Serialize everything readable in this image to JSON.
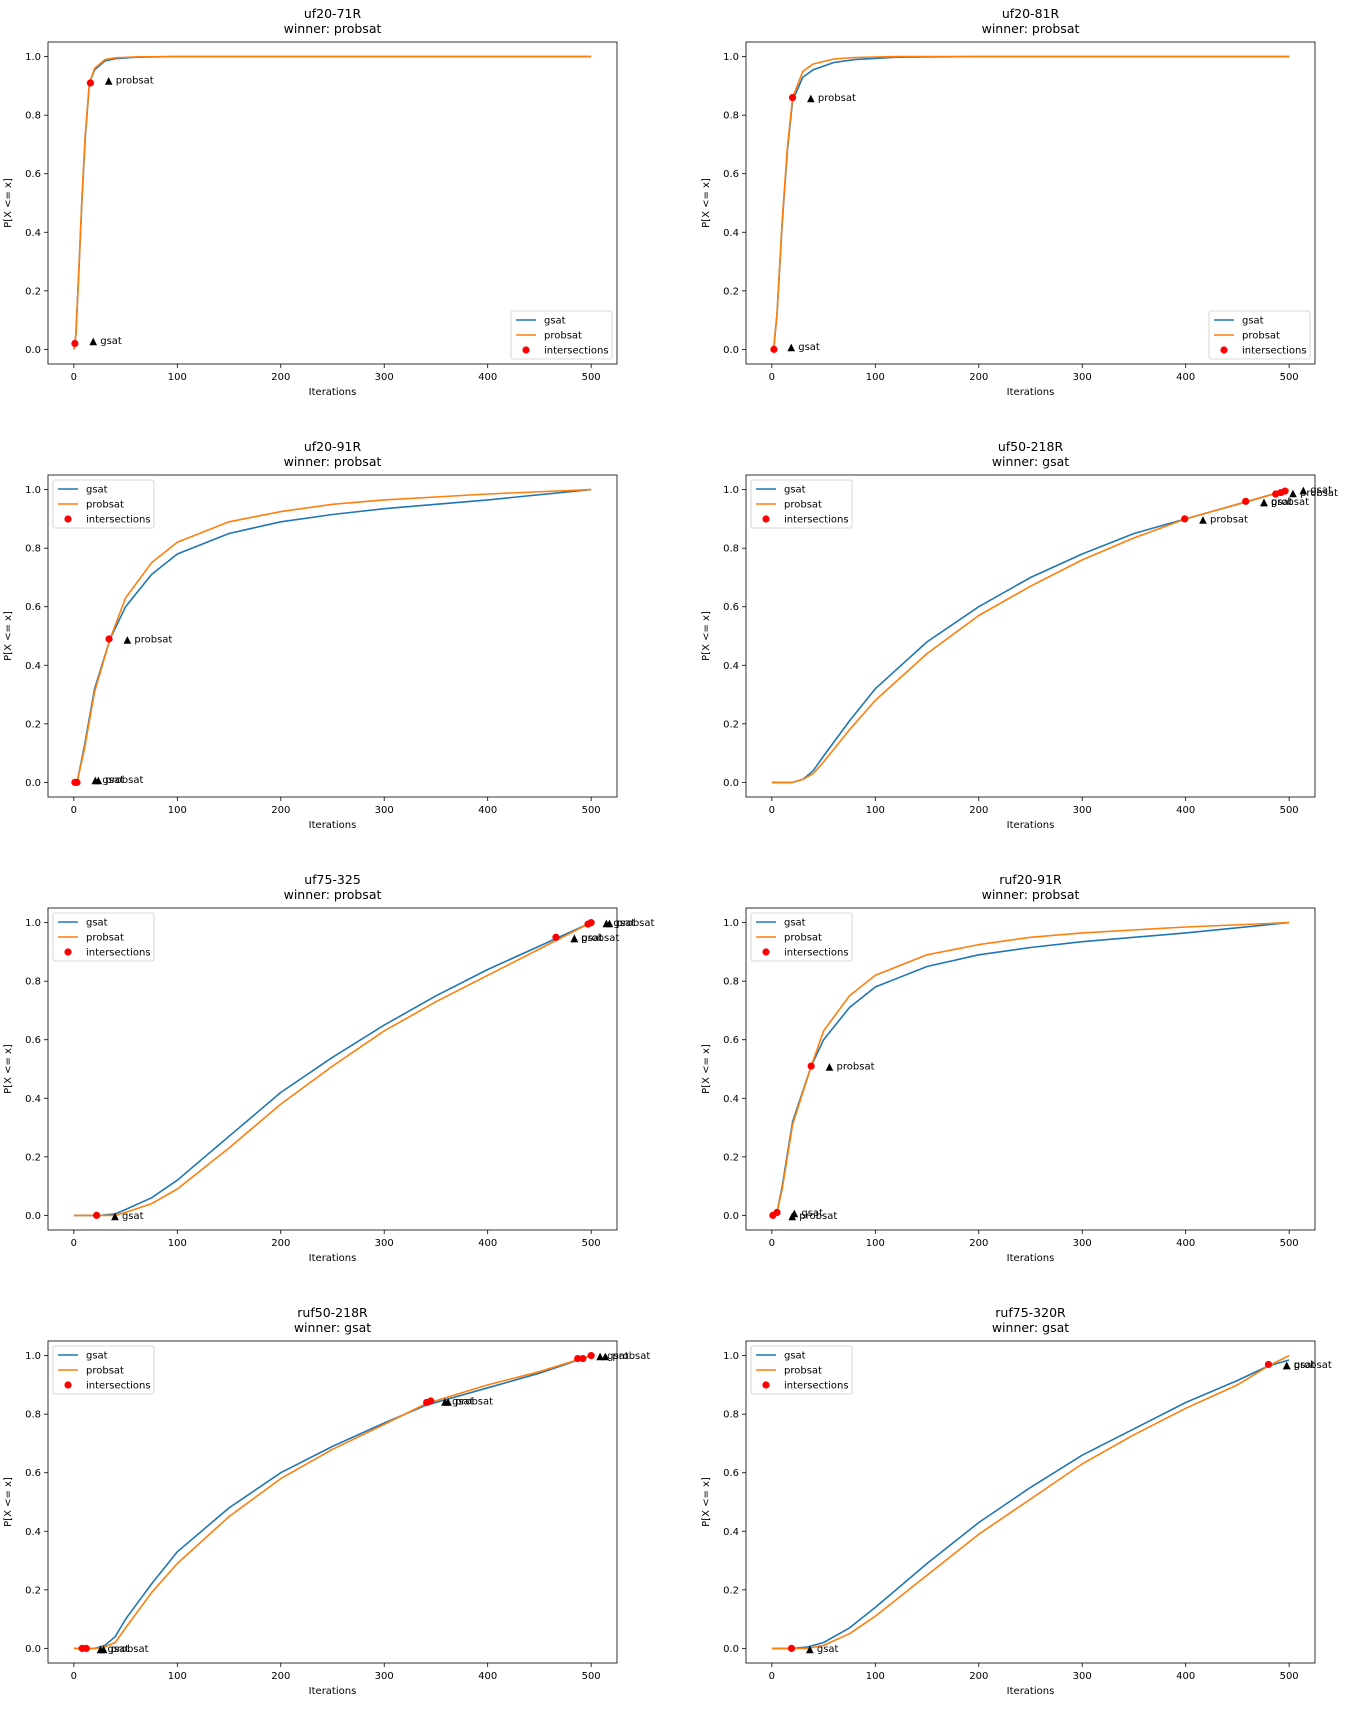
{
  "colors": {
    "gsat": "#1f77b4",
    "probsat": "#ff7f0e",
    "intersections": "#ff0000",
    "annotation": "#000000"
  },
  "chart_data": [
    {
      "type": "line",
      "title": "uf20-71R",
      "subtitle": "winner: probsat",
      "xlabel": "Iterations",
      "ylabel": "P[X <= x]",
      "xlim": [
        -25,
        525
      ],
      "ylim": [
        -0.05,
        1.05
      ],
      "xticks": [
        0,
        100,
        200,
        300,
        400,
        500
      ],
      "yticks": [
        0.0,
        0.2,
        0.4,
        0.6,
        0.8,
        1.0
      ],
      "legend_position": "lower-right",
      "legend": [
        "gsat",
        "probsat",
        "intersections"
      ],
      "series": [
        {
          "name": "gsat",
          "x": [
            0,
            2,
            5,
            8,
            11,
            15,
            20,
            30,
            40,
            60,
            100,
            200,
            500
          ],
          "y": [
            0,
            0.05,
            0.28,
            0.52,
            0.72,
            0.91,
            0.955,
            0.985,
            0.993,
            0.998,
            1.0,
            1.0,
            1.0
          ]
        },
        {
          "name": "probsat",
          "x": [
            0,
            2,
            5,
            8,
            11,
            15,
            20,
            30,
            40,
            60,
            100,
            200,
            500
          ],
          "y": [
            0,
            0.05,
            0.28,
            0.53,
            0.73,
            0.91,
            0.96,
            0.99,
            0.996,
            0.999,
            1.0,
            1.0,
            1.0
          ]
        }
      ],
      "intersections": [
        {
          "x": 1,
          "y": 0.02
        },
        {
          "x": 16,
          "y": 0.91
        }
      ],
      "annotations": [
        {
          "x": 15,
          "y": 0.03,
          "text": "▲ gsat"
        },
        {
          "x": 30,
          "y": 0.92,
          "text": "▲ probsat"
        }
      ]
    },
    {
      "type": "line",
      "title": "uf20-81R",
      "subtitle": "winner: probsat",
      "xlabel": "Iterations",
      "ylabel": "P[X <= x]",
      "xlim": [
        -25,
        525
      ],
      "ylim": [
        -0.05,
        1.05
      ],
      "xticks": [
        0,
        100,
        200,
        300,
        400,
        500
      ],
      "yticks": [
        0.0,
        0.2,
        0.4,
        0.6,
        0.8,
        1.0
      ],
      "legend_position": "lower-right",
      "legend": [
        "gsat",
        "probsat",
        "intersections"
      ],
      "series": [
        {
          "name": "gsat",
          "x": [
            0,
            2,
            5,
            10,
            15,
            20,
            30,
            40,
            60,
            80,
            120,
            200,
            500
          ],
          "y": [
            0,
            0.01,
            0.12,
            0.43,
            0.68,
            0.85,
            0.93,
            0.955,
            0.98,
            0.99,
            0.998,
            1.0,
            1.0
          ]
        },
        {
          "name": "probsat",
          "x": [
            0,
            2,
            5,
            10,
            15,
            20,
            30,
            40,
            60,
            80,
            120,
            200,
            500
          ],
          "y": [
            0,
            0.01,
            0.12,
            0.44,
            0.69,
            0.86,
            0.95,
            0.975,
            0.992,
            0.997,
            1.0,
            1.0,
            1.0
          ]
        }
      ],
      "intersections": [
        {
          "x": 2,
          "y": 0.0
        },
        {
          "x": 20,
          "y": 0.86
        }
      ],
      "annotations": [
        {
          "x": 15,
          "y": 0.01,
          "text": "▲ gsat"
        },
        {
          "x": 34,
          "y": 0.86,
          "text": "▲ probsat"
        }
      ]
    },
    {
      "type": "line",
      "title": "uf20-91R",
      "subtitle": "winner: probsat",
      "xlabel": "Iterations",
      "ylabel": "P[X <= x]",
      "xlim": [
        -25,
        525
      ],
      "ylim": [
        -0.05,
        1.05
      ],
      "xticks": [
        0,
        100,
        200,
        300,
        400,
        500
      ],
      "yticks": [
        0.0,
        0.2,
        0.4,
        0.6,
        0.8,
        1.0
      ],
      "legend_position": "upper-left",
      "legend": [
        "gsat",
        "probsat",
        "intersections"
      ],
      "series": [
        {
          "name": "gsat",
          "x": [
            0,
            3,
            10,
            20,
            35,
            50,
            75,
            100,
            150,
            200,
            250,
            300,
            400,
            500
          ],
          "y": [
            0,
            0.0,
            0.12,
            0.32,
            0.49,
            0.6,
            0.71,
            0.78,
            0.85,
            0.89,
            0.915,
            0.935,
            0.965,
            1.0
          ]
        },
        {
          "name": "probsat",
          "x": [
            0,
            3,
            10,
            20,
            35,
            50,
            75,
            100,
            150,
            200,
            250,
            300,
            400,
            500
          ],
          "y": [
            0,
            0.0,
            0.11,
            0.31,
            0.49,
            0.63,
            0.75,
            0.82,
            0.89,
            0.925,
            0.95,
            0.965,
            0.985,
            1.0
          ]
        }
      ],
      "intersections": [
        {
          "x": 1,
          "y": 0.0
        },
        {
          "x": 3,
          "y": 0.0
        },
        {
          "x": 34,
          "y": 0.49
        }
      ],
      "annotations": [
        {
          "x": 17,
          "y": 0.01,
          "text": "▲ gsat"
        },
        {
          "x": 20,
          "y": 0.01,
          "text": "▲ probsat"
        },
        {
          "x": 48,
          "y": 0.49,
          "text": "▲ probsat"
        }
      ]
    },
    {
      "type": "line",
      "title": "uf50-218R",
      "subtitle": "winner: gsat",
      "xlabel": "Iterations",
      "ylabel": "P[X <= x]",
      "xlim": [
        -25,
        525
      ],
      "ylim": [
        -0.05,
        1.05
      ],
      "xticks": [
        0,
        100,
        200,
        300,
        400,
        500
      ],
      "yticks": [
        0.0,
        0.2,
        0.4,
        0.6,
        0.8,
        1.0
      ],
      "legend_position": "upper-left",
      "legend": [
        "gsat",
        "probsat",
        "intersections"
      ],
      "series": [
        {
          "name": "gsat",
          "x": [
            0,
            20,
            30,
            40,
            50,
            75,
            100,
            150,
            200,
            250,
            300,
            350,
            400,
            450,
            500
          ],
          "y": [
            0,
            0.0,
            0.01,
            0.04,
            0.09,
            0.21,
            0.32,
            0.48,
            0.6,
            0.7,
            0.78,
            0.85,
            0.9,
            0.95,
            1.0
          ]
        },
        {
          "name": "probsat",
          "x": [
            0,
            20,
            30,
            40,
            50,
            75,
            100,
            150,
            200,
            250,
            300,
            350,
            400,
            450,
            500
          ],
          "y": [
            0,
            0.0,
            0.01,
            0.03,
            0.07,
            0.18,
            0.28,
            0.44,
            0.57,
            0.67,
            0.76,
            0.835,
            0.9,
            0.95,
            1.0
          ]
        }
      ],
      "intersections": [
        {
          "x": 399,
          "y": 0.9
        },
        {
          "x": 458,
          "y": 0.96
        },
        {
          "x": 487,
          "y": 0.985
        },
        {
          "x": 492,
          "y": 0.99
        },
        {
          "x": 496,
          "y": 0.995
        }
      ],
      "annotations": [
        {
          "x": 413,
          "y": 0.9,
          "text": "▲ probsat"
        },
        {
          "x": 472,
          "y": 0.96,
          "text": "▲ gsat"
        },
        {
          "x": 472,
          "y": 0.96,
          "text": "▲ probsat"
        },
        {
          "x": 500,
          "y": 0.99,
          "text": "▲ probsat"
        },
        {
          "x": 510,
          "y": 1.0,
          "text": "▲ gsat"
        }
      ]
    },
    {
      "type": "line",
      "title": "uf75-325",
      "subtitle": "winner: probsat",
      "xlabel": "Iterations",
      "ylabel": "P[X <= x]",
      "xlim": [
        -25,
        525
      ],
      "ylim": [
        -0.05,
        1.05
      ],
      "xticks": [
        0,
        100,
        200,
        300,
        400,
        500
      ],
      "yticks": [
        0.0,
        0.2,
        0.4,
        0.6,
        0.8,
        1.0
      ],
      "legend_position": "upper-left",
      "legend": [
        "gsat",
        "probsat",
        "intersections"
      ],
      "series": [
        {
          "name": "gsat",
          "x": [
            0,
            25,
            40,
            50,
            75,
            100,
            150,
            200,
            250,
            300,
            350,
            400,
            450,
            500
          ],
          "y": [
            0,
            0.0,
            0.005,
            0.02,
            0.06,
            0.12,
            0.27,
            0.42,
            0.54,
            0.65,
            0.75,
            0.84,
            0.92,
            1.0
          ]
        },
        {
          "name": "probsat",
          "x": [
            0,
            25,
            40,
            50,
            75,
            100,
            150,
            200,
            250,
            300,
            350,
            400,
            450,
            500
          ],
          "y": [
            0,
            0.0,
            0.0,
            0.01,
            0.04,
            0.09,
            0.23,
            0.38,
            0.51,
            0.63,
            0.73,
            0.82,
            0.91,
            1.0
          ]
        }
      ],
      "intersections": [
        {
          "x": 22,
          "y": 0.0
        },
        {
          "x": 466,
          "y": 0.95
        },
        {
          "x": 497,
          "y": 0.995
        },
        {
          "x": 500,
          "y": 1.0
        }
      ],
      "annotations": [
        {
          "x": 36,
          "y": 0.0,
          "text": "▲ gsat"
        },
        {
          "x": 480,
          "y": 0.95,
          "text": "▲ gsat"
        },
        {
          "x": 480,
          "y": 0.95,
          "text": "▲ probsat"
        },
        {
          "x": 511,
          "y": 1.0,
          "text": "▲ gsat"
        },
        {
          "x": 514,
          "y": 1.0,
          "text": "▲ probsat"
        }
      ]
    },
    {
      "type": "line",
      "title": "ruf20-91R",
      "subtitle": "winner: probsat",
      "xlabel": "Iterations",
      "ylabel": "P[X <= x]",
      "xlim": [
        -25,
        525
      ],
      "ylim": [
        -0.05,
        1.05
      ],
      "xticks": [
        0,
        100,
        200,
        300,
        400,
        500
      ],
      "yticks": [
        0.0,
        0.2,
        0.4,
        0.6,
        0.8,
        1.0
      ],
      "legend_position": "upper-left",
      "legend": [
        "gsat",
        "probsat",
        "intersections"
      ],
      "series": [
        {
          "name": "gsat",
          "x": [
            0,
            5,
            10,
            20,
            38,
            50,
            75,
            100,
            150,
            200,
            250,
            300,
            400,
            500
          ],
          "y": [
            0,
            0.01,
            0.1,
            0.32,
            0.51,
            0.6,
            0.71,
            0.78,
            0.85,
            0.89,
            0.915,
            0.935,
            0.965,
            1.0
          ]
        },
        {
          "name": "probsat",
          "x": [
            0,
            5,
            10,
            20,
            38,
            50,
            75,
            100,
            150,
            200,
            250,
            300,
            400,
            500
          ],
          "y": [
            0,
            0.01,
            0.09,
            0.31,
            0.51,
            0.63,
            0.75,
            0.82,
            0.89,
            0.925,
            0.95,
            0.965,
            0.985,
            1.0
          ]
        }
      ],
      "intersections": [
        {
          "x": 1,
          "y": 0.0
        },
        {
          "x": 5,
          "y": 0.01
        },
        {
          "x": 38,
          "y": 0.51
        }
      ],
      "annotations": [
        {
          "x": 16,
          "y": 0.0,
          "text": "▲ probsat"
        },
        {
          "x": 18,
          "y": 0.01,
          "text": "▲ gsat"
        },
        {
          "x": 52,
          "y": 0.51,
          "text": "▲ probsat"
        }
      ]
    },
    {
      "type": "line",
      "title": "ruf50-218R",
      "subtitle": "winner: gsat",
      "xlabel": "Iterations",
      "ylabel": "P[X <= x]",
      "xlim": [
        -25,
        525
      ],
      "ylim": [
        -0.05,
        1.05
      ],
      "xticks": [
        0,
        100,
        200,
        300,
        400,
        500
      ],
      "yticks": [
        0.0,
        0.2,
        0.4,
        0.6,
        0.8,
        1.0
      ],
      "legend_position": "upper-left",
      "legend": [
        "gsat",
        "probsat",
        "intersections"
      ],
      "series": [
        {
          "name": "gsat",
          "x": [
            0,
            10,
            20,
            30,
            40,
            50,
            75,
            100,
            150,
            200,
            250,
            300,
            340,
            400,
            450,
            500
          ],
          "y": [
            0,
            0.0,
            0.0,
            0.01,
            0.04,
            0.1,
            0.22,
            0.33,
            0.48,
            0.6,
            0.69,
            0.77,
            0.83,
            0.89,
            0.94,
            1.0
          ]
        },
        {
          "name": "probsat",
          "x": [
            0,
            10,
            20,
            30,
            40,
            50,
            75,
            100,
            150,
            200,
            250,
            300,
            340,
            400,
            450,
            500
          ],
          "y": [
            0,
            0.0,
            0.0,
            0.005,
            0.02,
            0.07,
            0.19,
            0.29,
            0.45,
            0.58,
            0.68,
            0.765,
            0.835,
            0.9,
            0.945,
            1.0
          ]
        }
      ],
      "intersections": [
        {
          "x": 8,
          "y": 0.0
        },
        {
          "x": 12,
          "y": 0.0
        },
        {
          "x": 341,
          "y": 0.84
        },
        {
          "x": 345,
          "y": 0.845
        },
        {
          "x": 487,
          "y": 0.99
        },
        {
          "x": 492,
          "y": 0.99
        },
        {
          "x": 500,
          "y": 1.0
        }
      ],
      "annotations": [
        {
          "x": 22,
          "y": 0.0,
          "text": "▲ gsat"
        },
        {
          "x": 25,
          "y": 0.0,
          "text": "▲ probsat"
        },
        {
          "x": 355,
          "y": 0.845,
          "text": "▲ gsat"
        },
        {
          "x": 358,
          "y": 0.845,
          "text": "▲ probsat"
        },
        {
          "x": 505,
          "y": 1.0,
          "text": "▲ gsat"
        },
        {
          "x": 510,
          "y": 1.0,
          "text": "▲ probsat"
        }
      ]
    },
    {
      "type": "line",
      "title": "ruf75-320R",
      "subtitle": "winner: gsat",
      "xlabel": "Iterations",
      "ylabel": "P[X <= x]",
      "xlim": [
        -25,
        525
      ],
      "ylim": [
        -0.05,
        1.05
      ],
      "xticks": [
        0,
        100,
        200,
        300,
        400,
        500
      ],
      "yticks": [
        0.0,
        0.2,
        0.4,
        0.6,
        0.8,
        1.0
      ],
      "legend_position": "upper-left",
      "legend": [
        "gsat",
        "probsat",
        "intersections"
      ],
      "series": [
        {
          "name": "gsat",
          "x": [
            0,
            20,
            35,
            50,
            75,
            100,
            150,
            200,
            250,
            300,
            350,
            400,
            450,
            480,
            500
          ],
          "y": [
            0,
            0.0,
            0.005,
            0.02,
            0.07,
            0.14,
            0.29,
            0.43,
            0.55,
            0.66,
            0.75,
            0.84,
            0.915,
            0.965,
            0.985
          ]
        },
        {
          "name": "probsat",
          "x": [
            0,
            20,
            35,
            50,
            75,
            100,
            150,
            200,
            250,
            300,
            350,
            400,
            450,
            480,
            500
          ],
          "y": [
            0,
            0.0,
            0.0,
            0.01,
            0.05,
            0.11,
            0.25,
            0.39,
            0.51,
            0.63,
            0.73,
            0.82,
            0.9,
            0.965,
            1.0
          ]
        }
      ],
      "intersections": [
        {
          "x": 19,
          "y": 0.0
        },
        {
          "x": 480,
          "y": 0.97
        }
      ],
      "annotations": [
        {
          "x": 33,
          "y": 0.0,
          "text": "▲ gsat"
        },
        {
          "x": 494,
          "y": 0.97,
          "text": "▲ gsat"
        },
        {
          "x": 494,
          "y": 0.97,
          "text": "▲ probsat"
        }
      ]
    }
  ]
}
